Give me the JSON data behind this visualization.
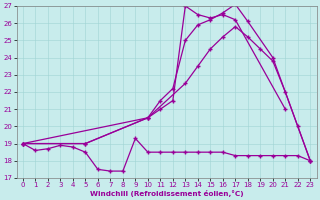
{
  "xlabel": "Windchill (Refroidissement éolien,°C)",
  "bg_color": "#c8ecec",
  "line_color": "#990099",
  "x": [
    0,
    1,
    2,
    3,
    4,
    5,
    6,
    7,
    8,
    9,
    10,
    11,
    12,
    13,
    14,
    15,
    16,
    17,
    18,
    19,
    20,
    21,
    22,
    23
  ],
  "line1": [
    19.0,
    18.6,
    18.7,
    18.9,
    18.8,
    18.5,
    17.5,
    17.4,
    17.4,
    19.3,
    18.5,
    18.5,
    18.5,
    18.5,
    18.5,
    18.5,
    18.5,
    18.3,
    18.3,
    18.3,
    18.3,
    18.3,
    18.3,
    18.0
  ],
  "line2_x": [
    0,
    5,
    10,
    13,
    14,
    15,
    16,
    17,
    18,
    19,
    20,
    21,
    22,
    23
  ],
  "line2_y": [
    19.0,
    19.0,
    20.5,
    22.5,
    23.5,
    24.5,
    25.2,
    25.8,
    25.2,
    24.5,
    23.8,
    22.0,
    20.0,
    18.0
  ],
  "line3_x": [
    0,
    5,
    10,
    11,
    12,
    13,
    14,
    15,
    16,
    17,
    18,
    20,
    23
  ],
  "line3_y": [
    19.0,
    19.0,
    20.5,
    21.5,
    22.2,
    25.0,
    25.9,
    26.2,
    26.6,
    27.1,
    26.1,
    24.0,
    18.0
  ],
  "line4_x": [
    0,
    10,
    11,
    12,
    13,
    14,
    15,
    16,
    17,
    21
  ],
  "line4_y": [
    19.0,
    20.5,
    21.0,
    21.5,
    27.0,
    26.5,
    26.3,
    26.5,
    26.2,
    21.0
  ],
  "ylim": [
    17,
    27
  ],
  "xlim": [
    -0.5,
    23.5
  ],
  "yticks": [
    17,
    18,
    19,
    20,
    21,
    22,
    23,
    24,
    25,
    26,
    27
  ],
  "xticks": [
    0,
    1,
    2,
    3,
    4,
    5,
    6,
    7,
    8,
    9,
    10,
    11,
    12,
    13,
    14,
    15,
    16,
    17,
    18,
    19,
    20,
    21,
    22,
    23
  ]
}
